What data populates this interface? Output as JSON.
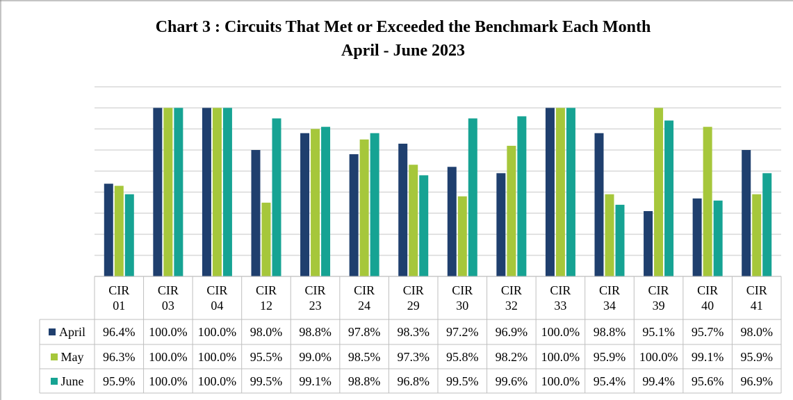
{
  "chart_data": {
    "type": "bar",
    "title": "Chart 3 : Circuits That Met or Exceeded the Benchmark Each Month",
    "subtitle": "April - June 2023",
    "categories": [
      "CIR 01",
      "CIR 03",
      "CIR 04",
      "CIR 12",
      "CIR 23",
      "CIR 24",
      "CIR 29",
      "CIR 30",
      "CIR 32",
      "CIR 33",
      "CIR 34",
      "CIR 39",
      "CIR 40",
      "CIR 41"
    ],
    "series": [
      {
        "name": "April",
        "color": "#1f3f6e",
        "values": [
          96.4,
          100.0,
          100.0,
          98.0,
          98.8,
          97.8,
          98.3,
          97.2,
          96.9,
          100.0,
          98.8,
          95.1,
          95.7,
          98.0
        ],
        "value_labels": [
          "96.4%",
          "100.0%",
          "100.0%",
          "98.0%",
          "98.8%",
          "97.8%",
          "98.3%",
          "97.2%",
          "96.9%",
          "100.0%",
          "98.8%",
          "95.1%",
          "95.7%",
          "98.0%"
        ]
      },
      {
        "name": "May",
        "color": "#a6c73b",
        "values": [
          96.3,
          100.0,
          100.0,
          95.5,
          99.0,
          98.5,
          97.3,
          95.8,
          98.2,
          100.0,
          95.9,
          100.0,
          99.1,
          95.9
        ],
        "value_labels": [
          "96.3%",
          "100.0%",
          "100.0%",
          "95.5%",
          "99.0%",
          "98.5%",
          "97.3%",
          "95.8%",
          "98.2%",
          "100.0%",
          "95.9%",
          "100.0%",
          "99.1%",
          "95.9%"
        ]
      },
      {
        "name": "June",
        "color": "#16a393",
        "values": [
          95.9,
          100.0,
          100.0,
          99.5,
          99.1,
          98.8,
          96.8,
          99.5,
          99.6,
          100.0,
          95.4,
          99.4,
          95.6,
          96.9
        ],
        "value_labels": [
          "95.9%",
          "100.0%",
          "100.0%",
          "99.5%",
          "99.1%",
          "98.8%",
          "96.8%",
          "99.5%",
          "99.6%",
          "100.0%",
          "95.4%",
          "99.4%",
          "95.6%",
          "96.9%"
        ]
      }
    ],
    "ylim": [
      92,
      101
    ],
    "yticks": [
      92,
      93,
      94,
      95,
      96,
      97,
      98,
      99,
      100,
      101
    ],
    "grid": true
  }
}
